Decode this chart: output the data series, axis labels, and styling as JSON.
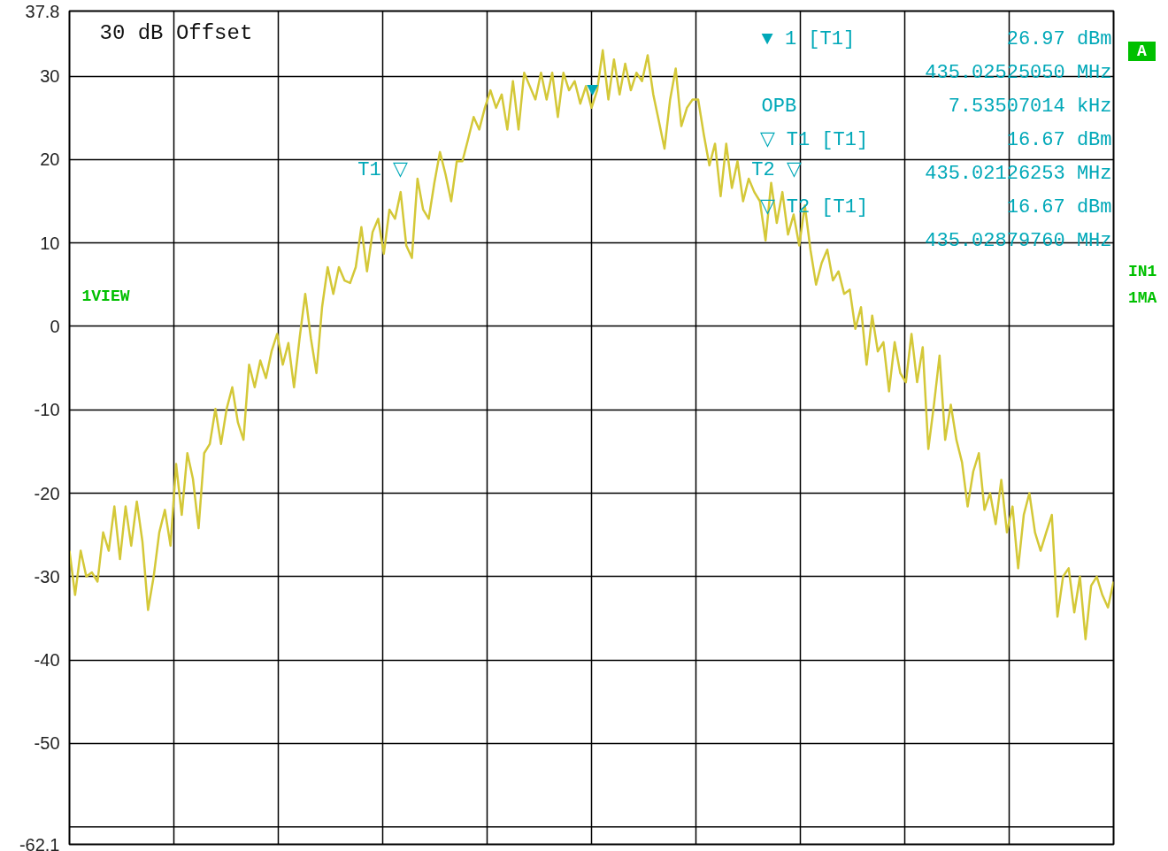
{
  "chart_data": {
    "type": "line",
    "categories": [
      null,
      null,
      null,
      null,
      null,
      null,
      null,
      null,
      null,
      null,
      null,
      null,
      null,
      null,
      null,
      null,
      null,
      null,
      null,
      null,
      null,
      null,
      null,
      null,
      null,
      null,
      null,
      null,
      null,
      null,
      null,
      null,
      null,
      null,
      null,
      null,
      null,
      null,
      null,
      null,
      null,
      null,
      null,
      null,
      null,
      null,
      null,
      null,
      null,
      null,
      null,
      null,
      null,
      null,
      null,
      null,
      null,
      null,
      null,
      null,
      null,
      null,
      null,
      null,
      null,
      null,
      null,
      null,
      null,
      null,
      null,
      null,
      null,
      null,
      null,
      null,
      null,
      null,
      null,
      null,
      null,
      null,
      null,
      null,
      null,
      null,
      null,
      null,
      null,
      null,
      null,
      null,
      null,
      null,
      null,
      null,
      null,
      null,
      null,
      null,
      null,
      null,
      null,
      null,
      null,
      null,
      null,
      null,
      null,
      null,
      null,
      null,
      null,
      null,
      null,
      null,
      null,
      null,
      null,
      null,
      null,
      null,
      null,
      null,
      null,
      null,
      null,
      null,
      null,
      null,
      null,
      null,
      null,
      null,
      null,
      null,
      null,
      null,
      null,
      null,
      null,
      null,
      null,
      null,
      null,
      null,
      null,
      null,
      null,
      null,
      null,
      null,
      null,
      null,
      null,
      null,
      null,
      null,
      null,
      null,
      null,
      null,
      null,
      null,
      null,
      null,
      null,
      null,
      null,
      null,
      null,
      null,
      null,
      null,
      null,
      null,
      null,
      null,
      null,
      null,
      null,
      null,
      null,
      null,
      null,
      null,
      null
    ],
    "ylim": [
      -62.1,
      37.8
    ],
    "yticks": [
      -62.1,
      -50,
      -40,
      -30,
      -20,
      -10,
      0,
      10,
      20,
      30,
      37.8
    ],
    "tick_labels": "y",
    "grid": true,
    "ref_lines": [
      {
        "axis": "y",
        "value": -60,
        "color": "#000000"
      }
    ],
    "series": [
      {
        "color": "#d4c838",
        "values": [
          -26.9,
          -32.2,
          -26.9,
          -30,
          -29.5,
          -30.6,
          -24.7,
          -26.9,
          -21.6,
          -27.9,
          -21.6,
          -26.3,
          -21,
          -25.8,
          -34,
          -30,
          -24.7,
          -22,
          -26.3,
          -16.5,
          -22.6,
          -15.2,
          -18.3,
          -24.2,
          -15.2,
          -14.1,
          -9.9,
          -14.1,
          -9.9,
          -7.3,
          -11.5,
          -13.6,
          -4.6,
          -7.3,
          -4.1,
          -6.2,
          -3,
          -0.9,
          -4.6,
          -2,
          -7.3,
          -1.4,
          3.9,
          -1.4,
          -5.6,
          2.3,
          7.1,
          3.9,
          7.1,
          5.5,
          5.2,
          7.1,
          11.9,
          6.6,
          11.3,
          12.9,
          8.7,
          14,
          12.9,
          16.1,
          9.7,
          8.2,
          17.7,
          14,
          12.9,
          17.2,
          20.9,
          18.2,
          15,
          19.8,
          19.8,
          22.4,
          25.1,
          23.6,
          26.2,
          28.3,
          26.2,
          27.8,
          23.6,
          29.4,
          23.6,
          30.4,
          28.8,
          27.2,
          30.4,
          27.2,
          30.4,
          25.1,
          30.4,
          28.3,
          29.4,
          26.7,
          28.8,
          26.2,
          28.3,
          33.1,
          27.2,
          32,
          27.8,
          31.5,
          28.3,
          30.4,
          29.4,
          32.5,
          27.8,
          24.6,
          21.3,
          27.2,
          30.9,
          24,
          26.2,
          27.2,
          27.2,
          23,
          19.3,
          21.9,
          15.6,
          21.9,
          16.6,
          19.8,
          15,
          17.7,
          16.1,
          15,
          10.3,
          17.2,
          12.4,
          16.1,
          11,
          13.4,
          9.7,
          14.5,
          9.2,
          5,
          7.6,
          9.2,
          5.5,
          6.6,
          3.9,
          4.4,
          -0.3,
          2.3,
          -4.6,
          1.3,
          -3,
          -1.9,
          -7.8,
          -1.9,
          -5.6,
          -6.7,
          -0.9,
          -6.7,
          -2.5,
          -14.7,
          -9.4,
          -3.5,
          -13.6,
          -9.4,
          -13.6,
          -16.3,
          -21.6,
          -17.4,
          -15.2,
          -22,
          -20,
          -23.7,
          -18.4,
          -24.7,
          -21.6,
          -29,
          -22.6,
          -20,
          -24.7,
          -26.9,
          -24.7,
          -22.6,
          -34.8,
          -30,
          -29,
          -34.3,
          -30,
          -37.5,
          -31.1,
          -30,
          -32.2,
          -33.7,
          -30.6
        ]
      }
    ],
    "annotations": [
      "30 dB Offset",
      "▼ 1 [T1]",
      "26.97 dBm",
      "435.02525050 MHz",
      "OPB",
      "7.53507014 kHz",
      "▽ T1 [T1]",
      "16.67 dBm",
      "435.02126253 MHz",
      "▽ T2 [T1]",
      "16.67 dBm",
      "435.02879760 MHz",
      "A",
      "1VIEW",
      "IN1",
      "1MA",
      {
        "text": "▼",
        "y": 26.97
      },
      "T1 ▽",
      "T2 ▽"
    ]
  }
}
